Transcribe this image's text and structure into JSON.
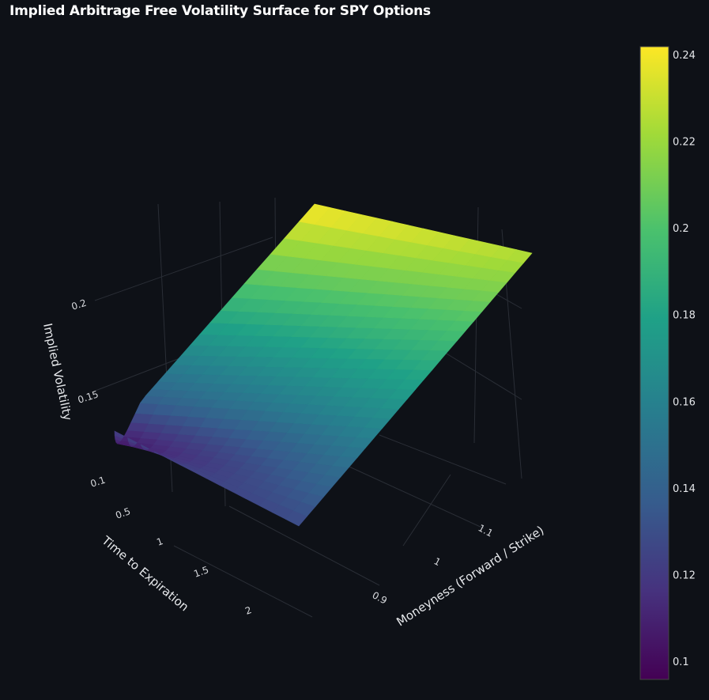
{
  "title": "Implied Arbitrage Free Volatility Surface for SPY Options",
  "chart_data": {
    "type": "surface",
    "title": "Implied Arbitrage Free Volatility Surface for SPY Options",
    "x_axis": {
      "label": "Moneyness (Forward / Strike)",
      "ticks": [
        0.9,
        1,
        1.1
      ],
      "range": [
        0.82,
        1.16
      ]
    },
    "y_axis": {
      "label": "Time to Expiration",
      "ticks": [
        0.5,
        1,
        1.5,
        2
      ],
      "range": [
        0.1,
        2.2
      ]
    },
    "z_axis": {
      "label": "Implied Volatility",
      "ticks": [
        0.1,
        0.15,
        0.2
      ],
      "range": [
        0.09,
        0.245
      ]
    },
    "colorbar": {
      "colorscale": "viridis",
      "ticks": [
        0.1,
        0.12,
        0.14,
        0.16,
        0.18,
        0.2,
        0.22,
        0.24
      ],
      "range": [
        0.096,
        0.242
      ],
      "placement": "right"
    },
    "corners": [
      {
        "moneyness": 0.82,
        "time": 0.1,
        "iv": 0.123
      },
      {
        "moneyness": 1.16,
        "time": 0.1,
        "iv": 0.242
      },
      {
        "moneyness": 1.16,
        "time": 2.2,
        "iv": 0.226
      },
      {
        "moneyness": 0.82,
        "time": 2.2,
        "iv": 0.128
      }
    ],
    "grid": true
  }
}
